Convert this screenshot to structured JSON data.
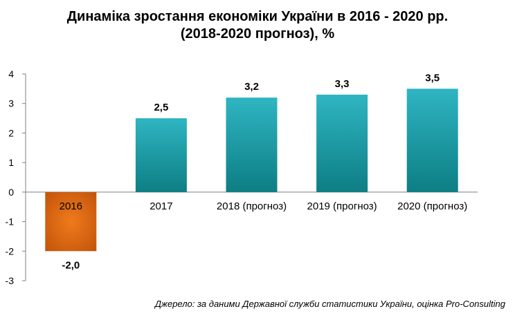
{
  "chart_data": {
    "type": "bar",
    "title": "Динаміка зростання економіки України в 2016 - 2020 рр.",
    "subtitle": "(2018-2020 прогноз), %",
    "categories": [
      "2016",
      "2017",
      "2018 (прогноз)",
      "2019 (прогноз)",
      "2020 (прогноз)"
    ],
    "values": [
      -2.0,
      2.5,
      3.2,
      3.3,
      3.5
    ],
    "data_labels": [
      "-2,0",
      "2,5",
      "3,2",
      "3,3",
      "3,5"
    ],
    "ylim": [
      -3,
      4
    ],
    "yticks": [
      "4",
      "3",
      "2",
      "1",
      "0",
      "-1",
      "-2",
      "-3"
    ],
    "grid": false,
    "legend": "none",
    "colors": {
      "positive_top": "#2fb5c2",
      "positive_bottom": "#0d7e84",
      "negative_center": "#f07a1c",
      "negative_edge": "#c2540a",
      "axis": "#7f7f7f"
    }
  },
  "source_note": "Джерело: за даними Державної служби статистики України, оцінка Pro-Consulting"
}
